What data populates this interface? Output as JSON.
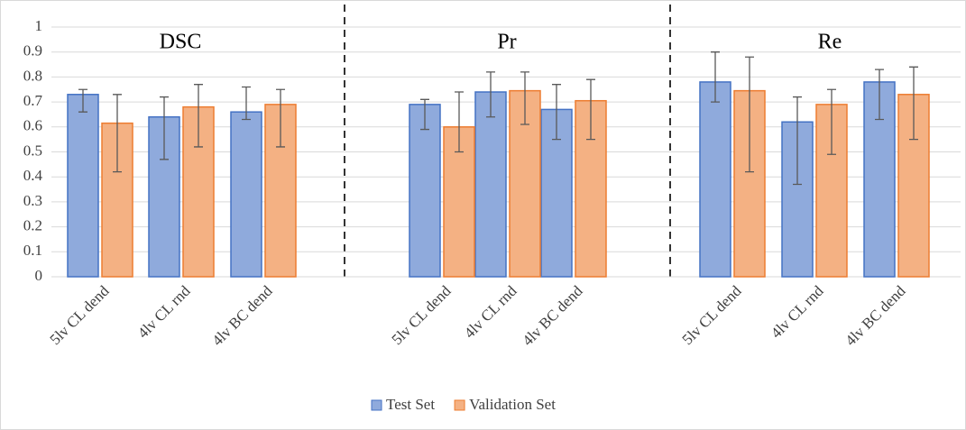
{
  "chart_data": {
    "type": "bar",
    "panel_titles": [
      "DSC",
      "Pr",
      "Re"
    ],
    "categories": [
      "5lv CL dend",
      "4lv CL rnd",
      "4lv BC dend",
      "5lv CL dend",
      "4lv CL rnd",
      "4lv BC dend",
      "5lv CL dend",
      "4lv CL rnd",
      "4lv BC dend"
    ],
    "series": [
      {
        "name": "Test Set",
        "color": "#8faadc",
        "edge": "#4472c4",
        "values": [
          0.73,
          0.64,
          0.66,
          0.69,
          0.74,
          0.67,
          0.78,
          0.62,
          0.78
        ],
        "err_low": [
          0.66,
          0.47,
          0.63,
          0.59,
          0.64,
          0.55,
          0.7,
          0.37,
          0.63
        ],
        "err_high": [
          0.75,
          0.72,
          0.76,
          0.71,
          0.82,
          0.77,
          0.9,
          0.72,
          0.83
        ]
      },
      {
        "name": "Validation Set",
        "color": "#f4b183",
        "edge": "#ed7d31",
        "values": [
          0.615,
          0.68,
          0.69,
          0.6,
          0.745,
          0.705,
          0.745,
          0.69,
          0.73
        ],
        "err_low": [
          0.42,
          0.52,
          0.52,
          0.5,
          0.61,
          0.55,
          0.42,
          0.49,
          0.55
        ],
        "err_high": [
          0.73,
          0.77,
          0.75,
          0.74,
          0.82,
          0.79,
          0.88,
          0.75,
          0.84
        ]
      }
    ],
    "ylim": [
      0,
      1
    ],
    "yticks": [
      0,
      0.1,
      0.2,
      0.3,
      0.4,
      0.5,
      0.6,
      0.7,
      0.8,
      0.9,
      1
    ],
    "grid": true,
    "legend": "bottom"
  }
}
